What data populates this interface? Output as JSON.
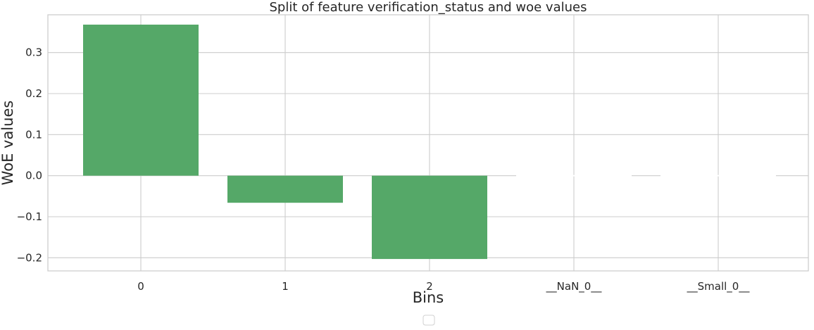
{
  "chart_data": {
    "type": "bar",
    "title": "Split of feature verification_status and woe values",
    "xlabel": "Bins",
    "ylabel": "WoE values",
    "categories": [
      "0",
      "1",
      "2",
      "__NaN_0__",
      "__Small_0__"
    ],
    "values": [
      0.368,
      -0.066,
      -0.203,
      0.0,
      0.0
    ],
    "ylim": [
      -0.232,
      0.392
    ],
    "yticks": [
      0.3,
      0.2,
      0.1,
      0.0,
      -0.1,
      -0.2
    ],
    "ytick_labels": [
      "0.3",
      "0.2",
      "0.1",
      "0.0",
      "−0.1",
      "−0.2"
    ],
    "grid": true,
    "legend": "bottom-center (empty)",
    "colors": {
      "bar": "#55a868",
      "grid": "#cccccc",
      "frame": "#cccccc",
      "text": "#262626"
    }
  }
}
